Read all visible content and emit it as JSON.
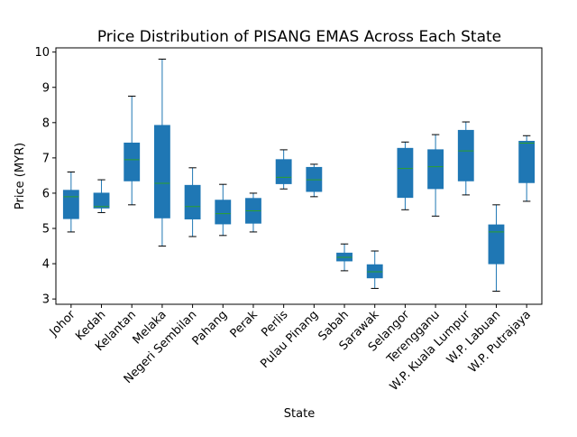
{
  "chart_data": {
    "type": "box",
    "title": "Price Distribution of PISANG EMAS Across Each State",
    "xlabel": "State",
    "ylabel": "Price (MYR)",
    "ylim": [
      2.85,
      10.12
    ],
    "yticks": [
      3,
      4,
      5,
      6,
      7,
      8,
      9,
      10
    ],
    "grid": false,
    "colors": {
      "box_fill": "#1f77b4",
      "median": "#2ca02c",
      "line": "#000000"
    },
    "categories": [
      "Johor",
      "Kedah",
      "Kelantan",
      "Melaka",
      "Negeri Sembilan",
      "Pahang",
      "Perak",
      "Perlis",
      "Pulau Pinang",
      "Sabah",
      "Sarawak",
      "Selangor",
      "Terengganu",
      "W.P. Kuala Lumpur",
      "W.P. Labuan",
      "W.P. Putrajaya"
    ],
    "boxes": [
      {
        "whislo": 4.9,
        "q1": 5.28,
        "med": 5.9,
        "q3": 6.08,
        "whishi": 6.6
      },
      {
        "whislo": 5.45,
        "q1": 5.58,
        "med": 5.62,
        "q3": 6.0,
        "whishi": 6.38
      },
      {
        "whislo": 5.67,
        "q1": 6.35,
        "med": 6.95,
        "q3": 7.42,
        "whishi": 8.75
      },
      {
        "whislo": 4.5,
        "q1": 5.3,
        "med": 6.28,
        "q3": 7.92,
        "whishi": 9.8
      },
      {
        "whislo": 4.77,
        "q1": 5.27,
        "med": 5.62,
        "q3": 6.22,
        "whishi": 6.72
      },
      {
        "whislo": 4.8,
        "q1": 5.13,
        "med": 5.42,
        "q3": 5.8,
        "whishi": 6.25
      },
      {
        "whislo": 4.9,
        "q1": 5.15,
        "med": 5.5,
        "q3": 5.85,
        "whishi": 6.0
      },
      {
        "whislo": 6.12,
        "q1": 6.27,
        "med": 6.45,
        "q3": 6.95,
        "whishi": 7.23
      },
      {
        "whislo": 5.9,
        "q1": 6.05,
        "med": 6.38,
        "q3": 6.73,
        "whishi": 6.82
      },
      {
        "whislo": 3.8,
        "q1": 4.08,
        "med": 4.18,
        "q3": 4.3,
        "whishi": 4.56
      },
      {
        "whislo": 3.3,
        "q1": 3.6,
        "med": 3.77,
        "q3": 3.97,
        "whishi": 4.36
      },
      {
        "whislo": 5.53,
        "q1": 5.88,
        "med": 6.7,
        "q3": 7.27,
        "whishi": 7.45
      },
      {
        "whislo": 5.35,
        "q1": 6.13,
        "med": 6.75,
        "q3": 7.23,
        "whishi": 7.66
      },
      {
        "whislo": 5.95,
        "q1": 6.35,
        "med": 7.2,
        "q3": 7.78,
        "whishi": 8.02
      },
      {
        "whislo": 3.22,
        "q1": 4.0,
        "med": 4.9,
        "q3": 5.1,
        "whishi": 5.67
      },
      {
        "whislo": 5.77,
        "q1": 6.3,
        "med": 7.42,
        "q3": 7.47,
        "whishi": 7.63
      }
    ]
  }
}
